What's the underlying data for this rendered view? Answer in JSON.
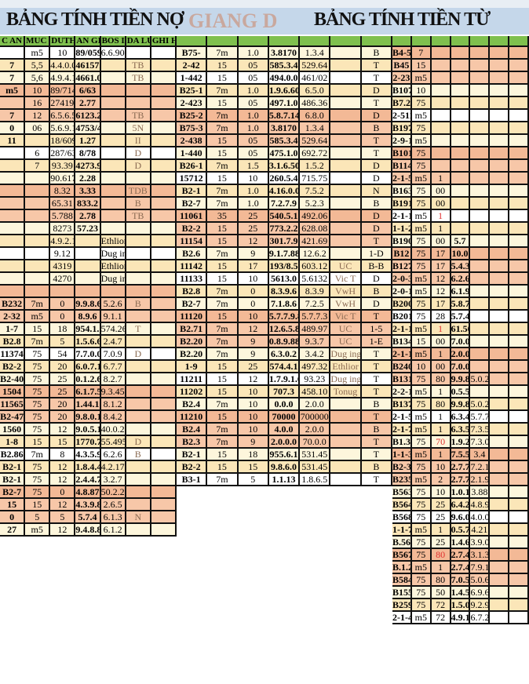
{
  "titles": {
    "left": "BẢNG TÍNH TIỀN NỢ",
    "right": "BẢNG TÍNH TIỀN TỪ",
    "watermark": "GIANG D"
  },
  "left": {
    "headers": [
      "C AN",
      "MUC ION",
      "DUTH ENC",
      "AN GIRA",
      "BOS IN GIN",
      "DA LUU",
      "GHI HING"
    ],
    "rows": [
      [
        "",
        "m5",
        "10",
        "89/0590",
        "6.6.90",
        "",
        ""
      ],
      [
        "7",
        "5,5",
        "4.4.0.0",
        "461572",
        "",
        "TB",
        ""
      ],
      [
        "7",
        "5,6",
        "4.9.4.1",
        "4661.0",
        "",
        "TB",
        ""
      ],
      [
        "m5",
        "10",
        "89/7140",
        "6/63",
        "",
        "",
        ""
      ],
      [
        "",
        "16",
        "274195",
        "2.77",
        "",
        "",
        ""
      ],
      [
        "7",
        "12",
        "6.5.6.5",
        "6123.2",
        "",
        "TB",
        ""
      ],
      [
        "0",
        "06",
        "5.6.9.1",
        "4753/4",
        "",
        "5N",
        ""
      ],
      [
        "11",
        "",
        "18/6094",
        "1.27",
        "",
        "II",
        ""
      ],
      [
        "",
        "6",
        "287/63",
        "8/78",
        "",
        "D",
        ""
      ],
      [
        "",
        "7",
        "93.39",
        "4273.9",
        "",
        "D",
        ""
      ],
      [
        "",
        "",
        "90.6179",
        "2.28",
        "",
        "",
        ""
      ],
      [
        "",
        "",
        "8.32",
        "3.33",
        "",
        "TDB",
        ""
      ],
      [
        "",
        "",
        "65.31",
        "833.2",
        "",
        "B",
        ""
      ],
      [
        "",
        "",
        "5.788",
        "2.78",
        "",
        "TB",
        ""
      ],
      [
        "",
        "",
        "8273",
        "57.23",
        "",
        "",
        ""
      ],
      [
        "",
        "",
        "4.9.2.1",
        "",
        "Ethlior",
        "",
        ""
      ],
      [
        "",
        "",
        "9.12",
        "",
        "Dug ing",
        "",
        ""
      ],
      [
        "",
        "",
        "4319",
        "",
        "Ethlior",
        "",
        ""
      ],
      [
        "",
        "",
        "4270",
        "",
        "Dug ing",
        "",
        ""
      ],
      [
        "",
        "",
        "",
        "",
        "",
        "",
        ""
      ],
      [
        "B232",
        "7m",
        "0",
        "9.9.8.6",
        "5.2.6",
        "B",
        ""
      ],
      [
        "2-32",
        "m5",
        "0",
        "8.9.6",
        "9.1.1",
        "",
        ""
      ],
      [
        "1-7",
        "15",
        "18",
        "954.1.7",
        "574.26",
        "T",
        ""
      ],
      [
        "B2.8",
        "7m",
        "5",
        "1.5.6.6",
        "2.4.7",
        "",
        ""
      ],
      [
        "11374",
        "75",
        "54",
        "7.7.0.0.0",
        "7.0.9",
        "D",
        ""
      ],
      [
        "B2-2",
        "75",
        "20",
        "6.0.7.1",
        "6.7.7",
        "",
        ""
      ],
      [
        "B2-40",
        "75",
        "25",
        "0.1.2.6",
        "8.2.7",
        "",
        ""
      ],
      [
        "1504",
        "75",
        "25",
        "6.1.7.5",
        "9.3.45",
        "",
        ""
      ],
      [
        "11565",
        "75",
        "20",
        "1.44.1",
        "8.1.2",
        "",
        ""
      ],
      [
        "B2-47",
        "75",
        "20",
        "9.8.0.1",
        "8.4.2",
        "",
        ""
      ],
      [
        "1560",
        "75",
        "12",
        "9.0.5.1",
        "40.0.22",
        "",
        ""
      ],
      [
        "1-8",
        "15",
        "15",
        "1770.79",
        "55.495",
        "D",
        ""
      ],
      [
        "B2.86",
        "7m",
        "8",
        "4.3.5.9",
        "6.2.6",
        "B",
        ""
      ],
      [
        "B2-1",
        "75",
        "12",
        "1.8.4.4",
        "4.2.17",
        "",
        ""
      ],
      [
        "B2-1",
        "75",
        "12",
        "2.4.4.7",
        "3.2.7",
        "",
        ""
      ],
      [
        "B2-7",
        "75",
        "0",
        "4.8.87",
        "50.2.2",
        "",
        ""
      ],
      [
        "15",
        "15",
        "12",
        "4.3.9.8",
        "2.6.5",
        "",
        ""
      ],
      [
        "0",
        "5",
        "5",
        "5.7.4",
        "6.1.3",
        "N",
        ""
      ],
      [
        "27",
        "m5",
        "12",
        "9.4.8.8",
        "6.1.2",
        "",
        ""
      ]
    ]
  },
  "middle": {
    "headers": [
      "",
      "",
      "",
      "",
      "",
      "",
      ""
    ],
    "rows": [
      [
        "B75-",
        "7m",
        "1.0",
        "3.8170",
        "1.3.4",
        "",
        "B"
      ],
      [
        "2-42",
        "15",
        "05",
        "585.3.4",
        "529.64",
        "",
        "T"
      ],
      [
        "1-442",
        "15",
        "05",
        "494.0.0",
        "461/02",
        "",
        "T"
      ],
      [
        "B25-1",
        "7m",
        "1.0",
        "1.9.6.60",
        "6.5.0",
        "",
        "D"
      ],
      [
        "2-423",
        "15",
        "05",
        "497.1.0",
        "486.36",
        "",
        "T"
      ],
      [
        "B25-2",
        "7m",
        "1.0",
        "5.8.7.14",
        "6.8.0",
        "",
        "D"
      ],
      [
        "B75-3",
        "7m",
        "1.0",
        "3.8170",
        "1.3.4",
        "",
        "B"
      ],
      [
        "2-438",
        "15",
        "05",
        "585.3.4",
        "529.64",
        "",
        "T"
      ],
      [
        "1-440",
        "15",
        "05",
        "475.1.0",
        "692.72",
        "",
        "T"
      ],
      [
        "B26-1",
        "7m",
        "1.5",
        "3.1.6.50",
        "1.5.2",
        "",
        "D"
      ],
      [
        "15712",
        "15",
        "10",
        "260.5.4",
        "715.75",
        "",
        "D"
      ],
      [
        "B2-1",
        "7m",
        "1.0",
        "4.16.0.0",
        "7.5.2",
        "",
        "N"
      ],
      [
        "B2-7",
        "7m",
        "1.0",
        "7.2.7.9",
        "5.2.3",
        "",
        "B"
      ],
      [
        "11061",
        "35",
        "25",
        "540.5.1",
        "492.06",
        "",
        "D"
      ],
      [
        "B2-2",
        "15",
        "25",
        "773.2.2",
        "628.08",
        "",
        "D"
      ],
      [
        "11154",
        "15",
        "12",
        "301.7.9",
        "421.69",
        "",
        "T"
      ],
      [
        "B2.6",
        "7m",
        "9",
        "9.1.7.88",
        "12.6.2",
        "",
        "1-D"
      ],
      [
        "11142",
        "15",
        "17",
        "193/8.5",
        "603.12",
        "UC",
        "B-B"
      ],
      [
        "11133",
        "15",
        "10",
        "5613.0",
        "5.6132",
        "Vic T",
        "D"
      ],
      [
        "B2.8",
        "7m",
        "0",
        "8.3.9.6",
        "8.3.9",
        "VwH",
        "B"
      ],
      [
        "B2-7",
        "7m",
        "0",
        "7.1.8.6",
        "7.2.5",
        "VwH",
        "D"
      ],
      [
        "11120",
        "15",
        "10",
        "5.7.7.9.8",
        "5.7.7.3",
        "Vic T",
        "T"
      ],
      [
        "B2.71",
        "7m",
        "12",
        "12.6.5.8",
        "489.97",
        "UC",
        "1-5"
      ],
      [
        "B2.20",
        "7m",
        "9",
        "0.8.9.88",
        "9.3.7",
        "UC",
        "1-E"
      ],
      [
        "B2.20",
        "7m",
        "9",
        "6.3.0.2",
        "3.4.2",
        "Dug ing",
        "T"
      ],
      [
        "1-9",
        "15",
        "25",
        "574.4.1",
        "497.32",
        "Ethlior",
        "T"
      ],
      [
        "11211",
        "15",
        "12",
        "1.7.9.1.6",
        "93.23",
        "Dug ing",
        "T"
      ],
      [
        "11202",
        "15",
        "10",
        "707.3",
        "458.10",
        "Tonug",
        "T"
      ],
      [
        "B2.4",
        "7m",
        "10",
        "0.0.0",
        "2.0.0",
        "",
        "B"
      ],
      [
        "11210",
        "15",
        "10",
        "70000",
        "700000",
        "",
        "T"
      ],
      [
        "B2.4",
        "7m",
        "10",
        "4.0.0",
        "2.0.0",
        "",
        "B"
      ],
      [
        "B2.3",
        "7m",
        "9",
        "2.0.0.0",
        "70.0.0",
        "",
        "T"
      ],
      [
        "B2-1",
        "15",
        "18",
        "955.6.1",
        "531.45",
        "",
        "T"
      ],
      [
        "B2-2",
        "15",
        "15",
        "9.8.6.0",
        "531.45",
        "",
        "B"
      ],
      [
        "B3-1",
        "7m",
        "5",
        "1.1.13",
        "1.8.6.5",
        "",
        "T"
      ]
    ]
  },
  "right": {
    "headers": [
      "",
      "",
      "",
      "",
      "",
      "",
      ""
    ],
    "rows": [
      [
        "B4-5",
        "7",
        "",
        "",
        "",
        "",
        ""
      ],
      [
        "B45",
        "15",
        "",
        "",
        "",
        "",
        ""
      ],
      [
        "2-23",
        "m5",
        "",
        "",
        "",
        "",
        ""
      ],
      [
        "B107",
        "10",
        "",
        "",
        "",
        "",
        ""
      ],
      [
        "B7.2",
        "75",
        "",
        "",
        "",
        "",
        ""
      ],
      [
        "2-511",
        "m5",
        "",
        "",
        "",
        "",
        ""
      ],
      [
        "B1974",
        "75",
        "",
        "",
        "",
        "",
        ""
      ],
      [
        "2-9-1",
        "m5",
        "",
        "",
        "",
        "",
        ""
      ],
      [
        "B101",
        "75",
        "",
        "",
        "",
        "",
        ""
      ],
      [
        "B114",
        "75",
        "",
        "",
        "",
        "",
        ""
      ],
      [
        "2-1-5",
        "m5",
        "1",
        "",
        "",
        "",
        ""
      ],
      [
        "B163",
        "75",
        "00",
        "",
        "",
        "",
        ""
      ],
      [
        "B191",
        "75",
        "00",
        "",
        "",
        "",
        ""
      ],
      [
        "2-1-1",
        "m5",
        "1",
        "",
        "",
        "",
        ""
      ],
      [
        "1-1-2",
        "m5",
        "1",
        "",
        "",
        "",
        ""
      ],
      [
        "B190",
        "75",
        "00",
        "5.7",
        "",
        "",
        ""
      ],
      [
        "B12",
        "75",
        "17",
        "10.0",
        "",
        "",
        ""
      ],
      [
        "B127",
        "75",
        "17",
        "5.4.3",
        "",
        "",
        ""
      ],
      [
        "2-0-3",
        "m5",
        "12",
        "6.2.6",
        "",
        "",
        ""
      ],
      [
        "2-0-1",
        "m5",
        "12",
        "6.1.9.0",
        "",
        "",
        ""
      ],
      [
        "B200",
        "75",
        "17",
        "5.8.7.40",
        "",
        "",
        ""
      ],
      [
        "B201",
        "75",
        "28",
        "5.7.4.1",
        "",
        "",
        ""
      ],
      [
        "2-1-1",
        "m5",
        "1",
        "61.503",
        "",
        "",
        ""
      ],
      [
        "B134",
        "15",
        "00",
        "7.0.0.0",
        "",
        "",
        ""
      ],
      [
        "2-1-1",
        "m5",
        "1",
        "2.0.0.00",
        "",
        "",
        ""
      ],
      [
        "B240",
        "10",
        "00",
        "7.0.0.0",
        "",
        "",
        ""
      ],
      [
        "B131",
        "75",
        "80",
        "9.9.8.1",
        "5.0.2",
        "",
        ""
      ],
      [
        "2-2-1",
        "m5",
        "1",
        "0.5.5.8.5",
        "",
        "",
        ""
      ],
      [
        "B137",
        "75",
        "80",
        "9.9.8.1",
        "5.0.2",
        "",
        ""
      ],
      [
        "2-1-5",
        "m5",
        "1",
        "6.3.4.0",
        "5.7.7.2",
        "",
        ""
      ],
      [
        "2-1-7",
        "m5",
        "1",
        "6.3.5.9.6",
        "7.3.5",
        "",
        ""
      ],
      [
        "B1.320",
        "75",
        "70",
        "1.9.2.4.9",
        "7.3.0",
        "",
        ""
      ],
      [
        "1-1-3",
        "m5",
        "1",
        "7.5.5.4",
        "3.4",
        "",
        ""
      ],
      [
        "B2-3",
        "75",
        "10",
        "2.7.7.3.1",
        "7.2.1",
        "",
        ""
      ],
      [
        "B2351",
        "m5",
        "2",
        "2.7.7.3",
        "2.1.9.2",
        "",
        ""
      ],
      [
        "B563",
        "75",
        "10",
        "1.0.10.2",
        "3.88",
        "",
        ""
      ],
      [
        "B564",
        "75",
        "25",
        "6.4.2.5",
        "4.8.9.0",
        "",
        ""
      ],
      [
        "B568",
        "75",
        "25",
        "9.6.0.5",
        "4.0.0.2",
        "",
        ""
      ],
      [
        "1-1-7",
        "m5",
        "1",
        "0.5.7.0.5",
        "4.21",
        "",
        ""
      ],
      [
        "B.560",
        "75",
        "25",
        "1.4.6.7.0",
        "3.9.0",
        "",
        ""
      ],
      [
        "B567",
        "75",
        "80",
        "2.7.4.7.1",
        "3.1.3.2",
        "",
        ""
      ],
      [
        "B.1.2",
        "m5",
        "1",
        "2.7.4.7",
        "7.9.1",
        "",
        ""
      ],
      [
        "B584",
        "75",
        "80",
        "7.0.5.3",
        "5.0.6.5",
        "",
        ""
      ],
      [
        "B155",
        "75",
        "50",
        "1.4.5.5.8",
        "6.9.6",
        "",
        ""
      ],
      [
        "B259.3",
        "75",
        "72",
        "1.5.0.6.1",
        "9.2.9.0",
        "",
        ""
      ],
      [
        "2-1-4",
        "m5",
        "72",
        "4.9.1.7.6",
        "6.7.2",
        "",
        ""
      ]
    ]
  },
  "colors": {
    "header": "#7fc04e",
    "peach": "#f7c7a8",
    "yellow": "#fbe6b8",
    "cream": "#fdf6dc",
    "title_band": "#c5d7ea",
    "accent_red": "#e03030"
  }
}
